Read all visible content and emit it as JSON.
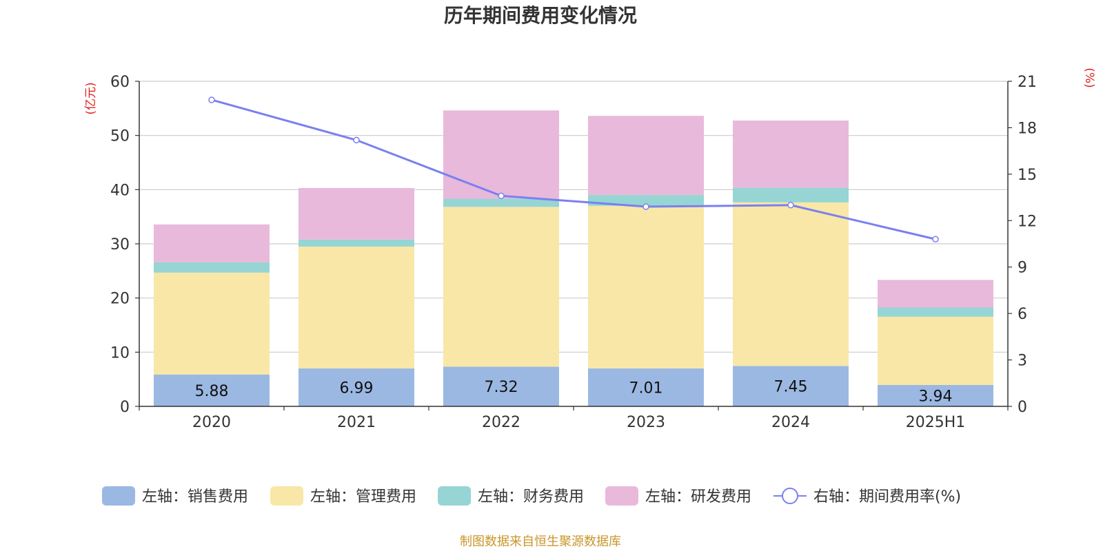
{
  "chart_data": {
    "type": "bar",
    "title": "历年期间费用变化情况",
    "left_axis_label": "(亿元)",
    "right_axis_label": "(%)",
    "categories": [
      "2020",
      "2021",
      "2022",
      "2023",
      "2024",
      "2025H1"
    ],
    "left_axis": {
      "min": 0,
      "max": 60,
      "ticks": [
        "0",
        "10",
        "20",
        "30",
        "40",
        "50",
        "60"
      ]
    },
    "right_axis": {
      "min": 0,
      "max": 21,
      "ticks": [
        "0",
        "3",
        "6",
        "9",
        "12",
        "15",
        "18",
        "21"
      ]
    },
    "stacked_series": [
      {
        "name": "左轴：销售费用",
        "color": "#9bb8e3",
        "values": [
          5.88,
          6.99,
          7.32,
          7.01,
          7.45,
          3.94
        ],
        "show_labels": true
      },
      {
        "name": "左轴：管理费用",
        "color": "#f8e7a7",
        "values": [
          18.8,
          22.5,
          29.5,
          30.0,
          30.2,
          12.6
        ],
        "show_labels": false
      },
      {
        "name": "左轴：财务费用",
        "color": "#96d5d4",
        "values": [
          1.9,
          1.3,
          1.5,
          2.0,
          2.7,
          1.7
        ],
        "show_labels": false
      },
      {
        "name": "左轴：研发费用",
        "color": "#e8b9da",
        "values": [
          7.0,
          9.5,
          16.3,
          14.6,
          12.4,
          5.1
        ],
        "show_labels": false
      }
    ],
    "line_series": {
      "name": "右轴：期间费用率(%)",
      "color": "#7b7ff0",
      "values": [
        19.8,
        17.2,
        13.6,
        12.9,
        13.0,
        10.8
      ]
    },
    "grid": true,
    "legend_position": "bottom"
  },
  "footer_source": "制图数据来自恒生聚源数据库",
  "colors": {
    "axis_label": "#e0201a",
    "footer": "#c8962a",
    "grid": "#cccccc"
  }
}
